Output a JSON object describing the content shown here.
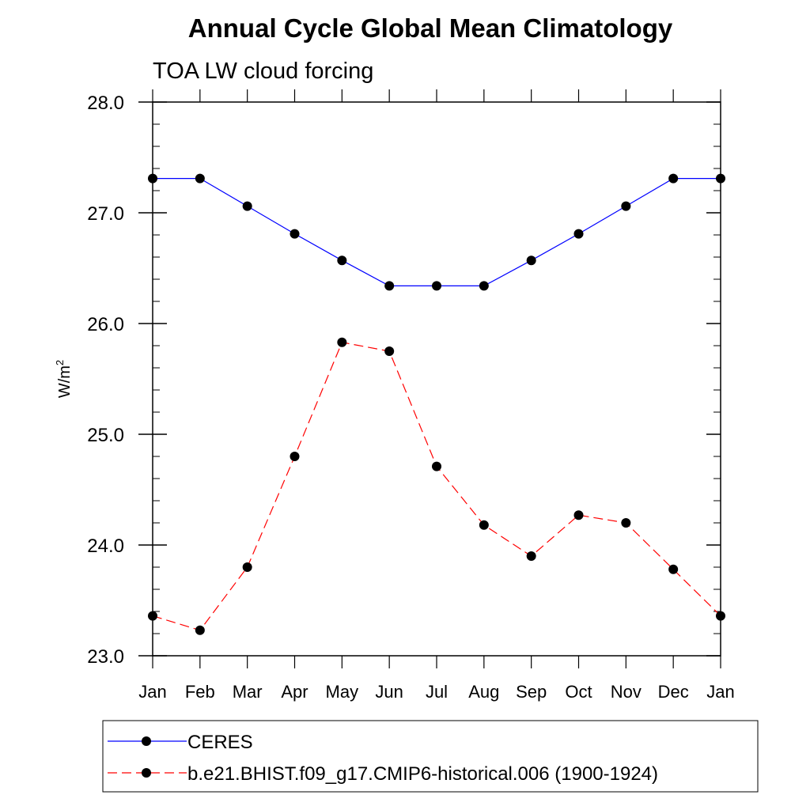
{
  "chart_data": {
    "type": "line",
    "title": "Annual Cycle Global Mean Climatology",
    "subtitle": "TOA LW cloud forcing",
    "ylabel": "W/m",
    "ylabel_sup": "2",
    "xlabel": "",
    "ylim": [
      23.0,
      28.0
    ],
    "yticks": [
      23.0,
      24.0,
      25.0,
      26.0,
      27.0,
      28.0
    ],
    "ytick_labels": [
      "23.0",
      "24.0",
      "25.0",
      "26.0",
      "27.0",
      "28.0"
    ],
    "categories": [
      "Jan",
      "Feb",
      "Mar",
      "Apr",
      "May",
      "Jun",
      "Jul",
      "Aug",
      "Sep",
      "Oct",
      "Nov",
      "Dec",
      "Jan"
    ],
    "legend_position": "bottom",
    "series": [
      {
        "name": "CERES",
        "color": "#0000ff",
        "dash": "solid",
        "values": [
          27.31,
          27.31,
          27.06,
          26.81,
          26.57,
          26.34,
          26.34,
          26.34,
          26.57,
          26.81,
          27.06,
          27.31,
          27.31
        ]
      },
      {
        "name": "b.e21.BHIST.f09_g17.CMIP6-historical.006 (1900-1924)",
        "color": "#ff0000",
        "dash": "dashed",
        "values": [
          23.36,
          23.23,
          23.8,
          24.8,
          25.83,
          25.75,
          24.71,
          24.18,
          23.9,
          24.27,
          24.2,
          23.78,
          23.36
        ]
      }
    ]
  }
}
